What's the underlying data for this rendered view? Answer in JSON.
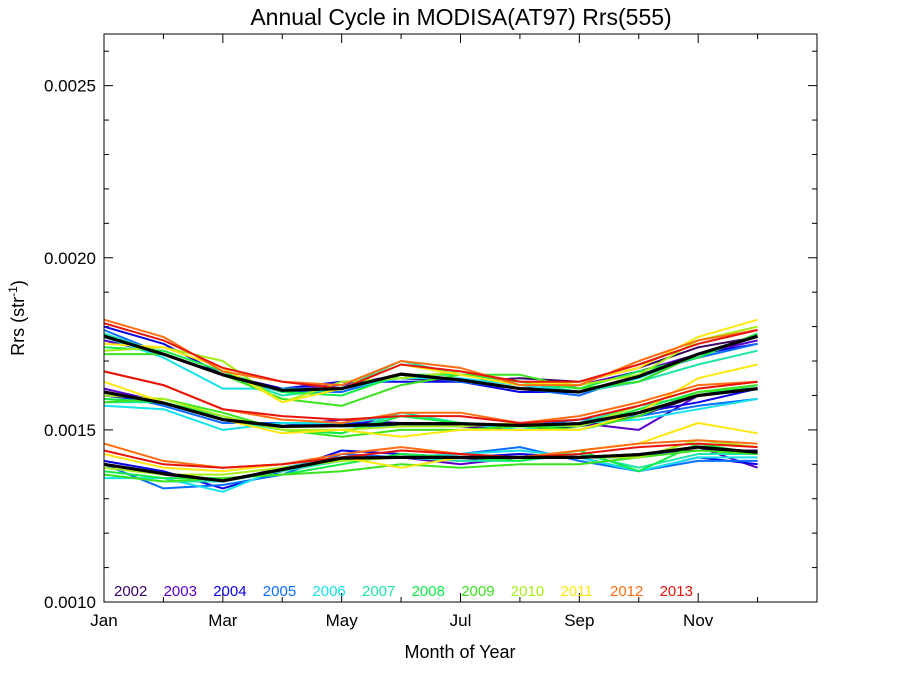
{
  "chart_data": {
    "type": "line",
    "title": "Annual Cycle in MODISA(AT97) Rrs(555)",
    "xlabel": "Month of Year",
    "ylabel": {
      "main": "Rrs (str",
      "sup": "-1",
      "tail": ")"
    },
    "x_tick_labels": [
      "Jan",
      "Mar",
      "May",
      "Jul",
      "Sep",
      "Nov"
    ],
    "x_ticks": [
      1,
      3,
      5,
      7,
      9,
      11
    ],
    "xlim": [
      1,
      13
    ],
    "ylim": [
      0.001,
      0.00265
    ],
    "y_tick_values": [
      0.001,
      0.0015,
      0.002,
      0.0025
    ],
    "y_tick_labels": [
      "0.0010",
      "0.0015",
      "0.0020",
      "0.0025"
    ],
    "grid": false,
    "legend_position": "bottom-left",
    "x": [
      1,
      2,
      3,
      4,
      5,
      6,
      7,
      8,
      9,
      10,
      11,
      12
    ],
    "years": [
      {
        "label": "2002",
        "color": "#3a0064"
      },
      {
        "label": "2003",
        "color": "#5a00c8"
      },
      {
        "label": "2004",
        "color": "#0a00e6"
      },
      {
        "label": "2005",
        "color": "#0a6eff"
      },
      {
        "label": "2006",
        "color": "#16e2ea"
      },
      {
        "label": "2007",
        "color": "#1ee6a8"
      },
      {
        "label": "2008",
        "color": "#12ee46"
      },
      {
        "label": "2009",
        "color": "#3ce41e"
      },
      {
        "label": "2010",
        "color": "#a6ee1a"
      },
      {
        "label": "2011",
        "color": "#ffe810"
      },
      {
        "label": "2012",
        "color": "#ff6e12"
      },
      {
        "label": "2013",
        "color": "#e8140a"
      }
    ],
    "mean_color": "#000000",
    "groups": [
      {
        "name": "upper",
        "mean": [
          0.001772,
          0.00172,
          0.00166,
          0.001615,
          0.00162,
          0.001662,
          0.001645,
          0.00162,
          0.00161,
          0.001655,
          0.00172,
          0.001772
        ],
        "series": [
          [
            null,
            null,
            null,
            null,
            null,
            0.00165,
            0.00164,
            0.00165,
            0.00164,
            0.00168,
            0.00174,
            0.00177
          ],
          [
            0.00176,
            0.00172,
            0.00166,
            0.00162,
            0.00163,
            0.00166,
            0.00164,
            0.00162,
            0.00163,
            0.00167,
            0.00172,
            0.00176
          ],
          [
            0.0018,
            0.00175,
            0.00166,
            0.00162,
            0.00164,
            0.00164,
            0.00164,
            0.00161,
            0.00161,
            0.00164,
            0.00172,
            0.00175
          ],
          [
            0.00179,
            0.00172,
            0.00166,
            0.00161,
            0.00161,
            0.00166,
            0.00164,
            0.00162,
            0.0016,
            0.00166,
            0.00171,
            0.00175
          ],
          [
            0.00177,
            0.00171,
            0.00162,
            0.00162,
            0.00162,
            0.00165,
            0.00165,
            0.00163,
            0.00161,
            0.00165,
            0.00172,
            0.00177
          ],
          [
            0.00178,
            0.00172,
            0.00166,
            0.0016,
            0.00162,
            0.0017,
            0.00166,
            0.00164,
            0.00161,
            0.00164,
            0.00169,
            0.00173
          ],
          [
            0.00174,
            0.00173,
            0.00167,
            0.00161,
            0.0016,
            0.00166,
            0.00166,
            0.00164,
            0.00162,
            0.00167,
            0.00171,
            0.00178
          ],
          [
            0.00172,
            0.00172,
            0.00166,
            0.00159,
            0.00157,
            0.00163,
            0.00166,
            0.00166,
            0.00162,
            0.00164,
            0.00172,
            0.00177
          ],
          [
            0.00173,
            0.00174,
            0.0017,
            0.00158,
            0.00164,
            0.00165,
            0.00167,
            0.00164,
            0.00163,
            0.00166,
            0.00176,
            0.0018
          ],
          [
            0.00175,
            0.00174,
            0.00168,
            0.00158,
            0.00162,
            0.00169,
            0.00166,
            0.00163,
            0.00164,
            0.00168,
            0.00177,
            0.00182
          ],
          [
            0.00182,
            0.00177,
            0.00167,
            0.00164,
            0.00163,
            0.0017,
            0.00168,
            0.00163,
            0.00163,
            0.0017,
            0.00176,
            0.00179
          ],
          [
            0.00181,
            0.00176,
            0.00168,
            0.00164,
            0.00162,
            0.00169,
            0.00167,
            0.00164,
            0.00164,
            0.00169,
            0.00175,
            0.00179
          ]
        ]
      },
      {
        "name": "middle",
        "mean": [
          0.00161,
          0.001578,
          0.00153,
          0.00151,
          0.001512,
          0.001518,
          0.001518,
          0.001513,
          0.001518,
          0.00155,
          0.0016,
          0.00162
        ],
        "series": [
          [
            null,
            null,
            null,
            null,
            null,
            0.00152,
            0.00151,
            0.0015,
            0.00151,
            0.00154,
            0.0016,
            0.00162
          ],
          [
            0.00162,
            0.00158,
            0.00153,
            0.00151,
            0.00153,
            0.00152,
            0.00151,
            0.00151,
            0.00152,
            0.0015,
            0.0016,
            0.00162
          ],
          [
            0.0016,
            0.00158,
            0.00153,
            0.00151,
            0.00152,
            0.00152,
            0.00152,
            0.00151,
            0.00152,
            0.00155,
            0.00158,
            0.00162
          ],
          [
            0.00161,
            0.00157,
            0.00152,
            0.00152,
            0.00151,
            0.00151,
            0.00152,
            0.00151,
            0.00153,
            0.00154,
            0.00157,
            0.00159
          ],
          [
            0.00157,
            0.00156,
            0.0015,
            0.00152,
            0.00152,
            0.00154,
            0.00152,
            0.0015,
            0.00152,
            0.00153,
            0.00156,
            0.00159
          ],
          [
            0.00158,
            0.00158,
            0.00153,
            0.0015,
            0.00149,
            0.00155,
            0.00152,
            0.00151,
            0.00152,
            0.00157,
            0.0016,
            0.00163
          ],
          [
            0.00159,
            0.00158,
            0.00154,
            0.0015,
            0.00149,
            0.00154,
            0.00152,
            0.00151,
            0.00151,
            0.00156,
            0.00161,
            0.00162
          ],
          [
            0.00158,
            0.00159,
            0.00155,
            0.0015,
            0.00148,
            0.0015,
            0.0015,
            0.00151,
            0.0015,
            0.00154,
            0.00161,
            0.00163
          ],
          [
            0.0016,
            0.00159,
            0.00154,
            0.0015,
            0.0015,
            0.00151,
            0.00151,
            0.00152,
            0.00151,
            0.00157,
            0.00162,
            0.00164
          ],
          [
            0.00164,
            0.00158,
            0.00153,
            0.00149,
            0.0015,
            0.00148,
            0.0015,
            0.0015,
            0.0015,
            0.00155,
            0.00165,
            0.00169
          ],
          [
            0.00167,
            0.00163,
            0.00156,
            0.00153,
            0.00152,
            0.00155,
            0.00155,
            0.00152,
            0.00154,
            0.00158,
            0.00163,
            0.00164
          ],
          [
            0.00167,
            0.00163,
            0.00156,
            0.00154,
            0.00153,
            0.00154,
            0.00154,
            0.00152,
            0.00153,
            0.00157,
            0.00162,
            0.00164
          ]
        ]
      },
      {
        "name": "lower",
        "mean": [
          0.0014,
          0.001373,
          0.001352,
          0.001385,
          0.001418,
          0.00142,
          0.00142,
          0.00142,
          0.00142,
          0.001428,
          0.00145,
          0.001435
        ],
        "series": [
          [
            null,
            null,
            null,
            null,
            null,
            0.00142,
            0.00141,
            0.00142,
            0.00142,
            0.00143,
            0.00144,
            0.00144
          ],
          [
            0.0014,
            0.00137,
            0.00135,
            0.00139,
            0.00142,
            0.00142,
            0.0014,
            0.00142,
            0.00142,
            0.00142,
            0.00145,
            0.00139
          ],
          [
            0.00141,
            0.00138,
            0.00133,
            0.00138,
            0.00144,
            0.00143,
            0.00142,
            0.00143,
            0.00142,
            0.00138,
            0.00142,
            0.0014
          ],
          [
            0.0014,
            0.00133,
            0.00134,
            0.00137,
            0.00143,
            0.00142,
            0.00143,
            0.00145,
            0.00141,
            0.00138,
            0.00141,
            0.00141
          ],
          [
            0.00136,
            0.00136,
            0.00132,
            0.00139,
            0.00142,
            0.00142,
            0.00143,
            0.00144,
            0.00142,
            0.00138,
            0.00142,
            0.00142
          ],
          [
            0.00137,
            0.00135,
            0.00135,
            0.00138,
            0.00141,
            0.00142,
            0.00141,
            0.00141,
            0.00143,
            0.00139,
            0.00143,
            0.00143
          ],
          [
            0.00138,
            0.00136,
            0.00136,
            0.00137,
            0.0014,
            0.00143,
            0.00142,
            0.00141,
            0.00144,
            0.00138,
            0.00146,
            0.00143
          ],
          [
            0.00137,
            0.00135,
            0.00136,
            0.00137,
            0.00138,
            0.0014,
            0.00139,
            0.0014,
            0.0014,
            0.00142,
            0.00144,
            0.00143
          ],
          [
            0.00139,
            0.00137,
            0.00137,
            0.00139,
            0.00141,
            0.00142,
            0.00142,
            0.00142,
            0.00142,
            0.00142,
            0.00147,
            0.00145
          ],
          [
            0.00143,
            0.00139,
            0.00138,
            0.0014,
            0.00142,
            0.00139,
            0.00142,
            0.00142,
            0.00144,
            0.00146,
            0.00152,
            0.00149
          ],
          [
            0.00146,
            0.00141,
            0.00139,
            0.0014,
            0.00143,
            0.00145,
            0.00143,
            0.00142,
            0.00144,
            0.00146,
            0.00147,
            0.00146
          ],
          [
            0.00144,
            0.0014,
            0.00139,
            0.0014,
            0.00142,
            0.00144,
            0.00143,
            0.00142,
            0.00143,
            0.00145,
            0.00146,
            0.00145
          ]
        ]
      }
    ]
  }
}
